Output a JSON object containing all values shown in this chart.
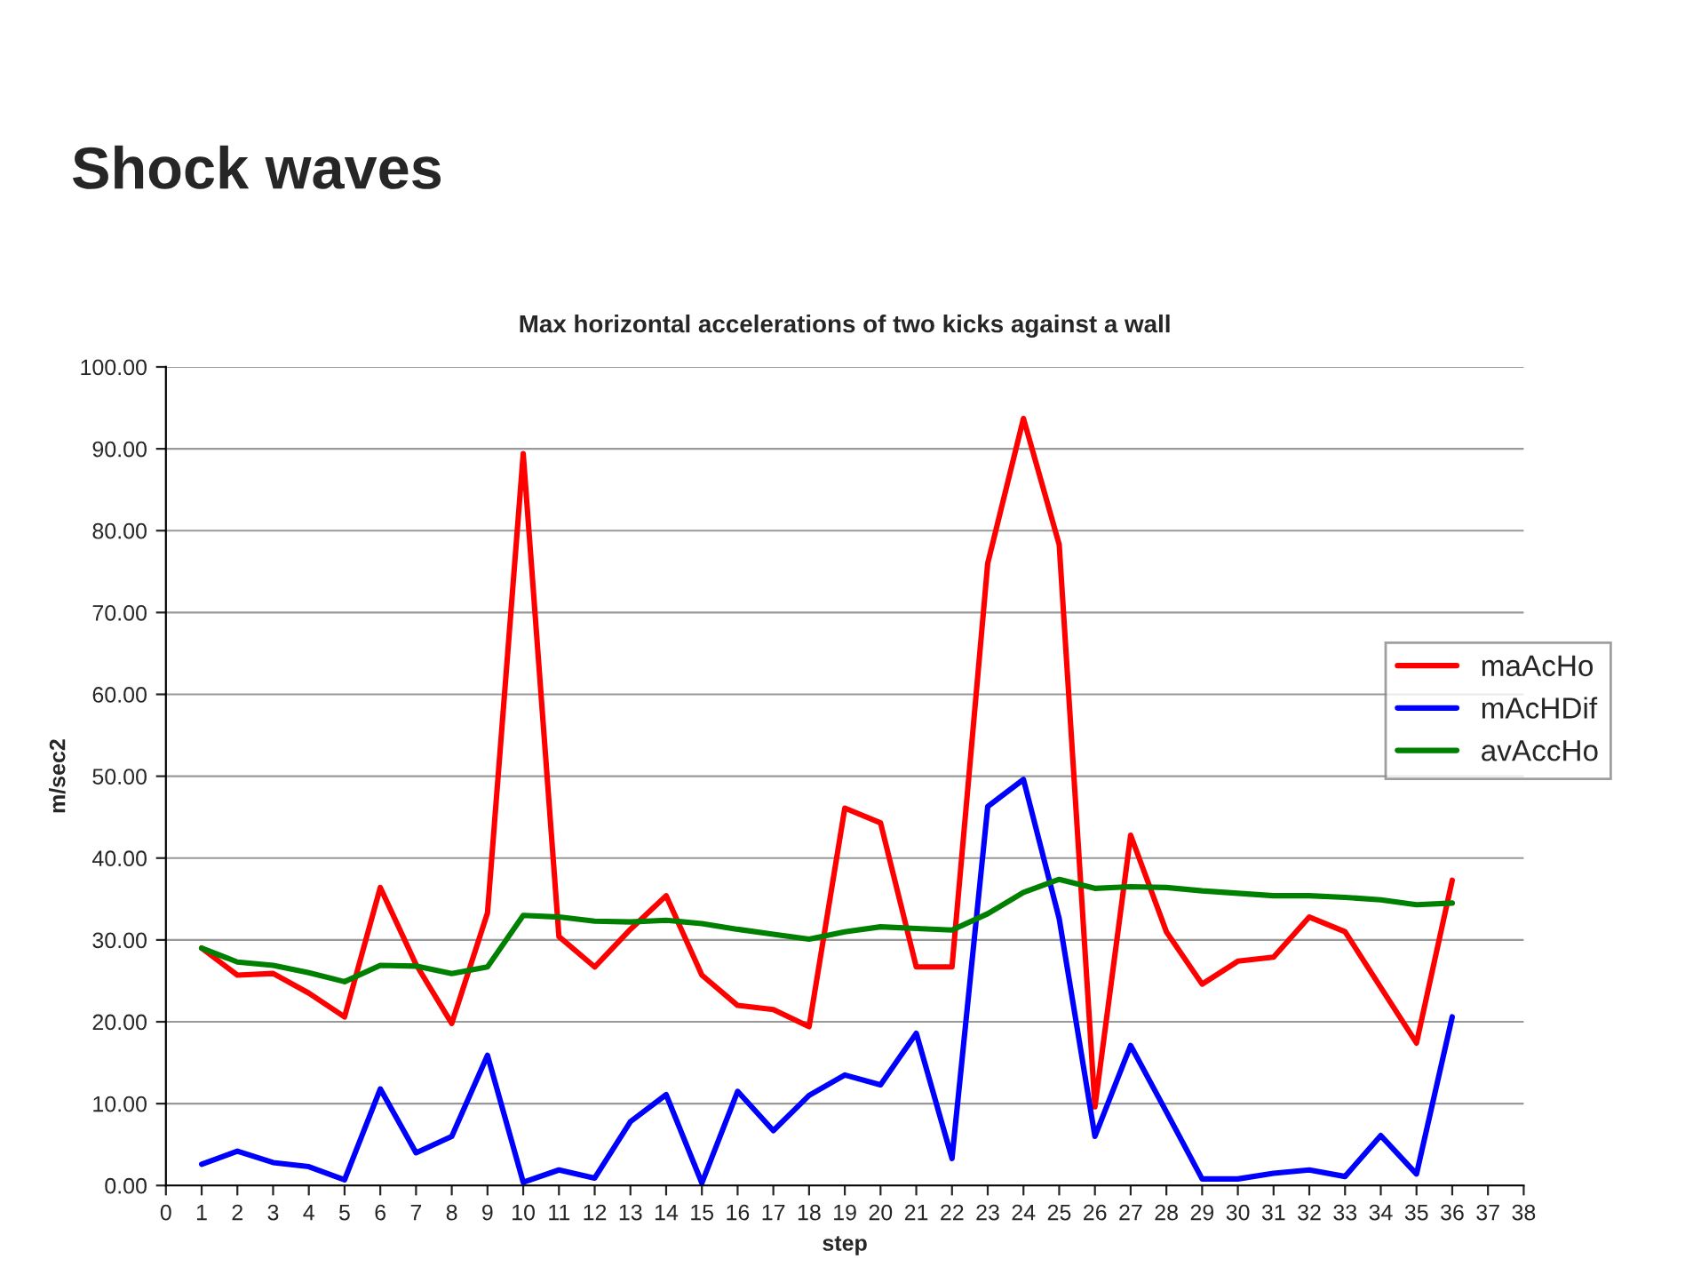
{
  "chart_data": {
    "type": "line",
    "title": "Shock waves",
    "subtitle": "Max horizontal accelerations of two kicks against a wall",
    "xlabel": "step",
    "ylabel": "m/sec2",
    "x": [
      1,
      2,
      3,
      4,
      5,
      6,
      7,
      8,
      9,
      10,
      11,
      12,
      13,
      14,
      15,
      16,
      17,
      18,
      19,
      20,
      21,
      22,
      23,
      24,
      25,
      26,
      27,
      28,
      29,
      30,
      31,
      32,
      33,
      34,
      35,
      36
    ],
    "series": [
      {
        "name": "maAcHo",
        "color": "#ff0000",
        "values": [
          29,
          25.7,
          25.9,
          23.5,
          20.6,
          36.4,
          27,
          19.8,
          33.3,
          89.4,
          30.4,
          26.7,
          31.3,
          35.4,
          25.7,
          22,
          21.5,
          19.4,
          46.1,
          44.3,
          26.7,
          26.7,
          76,
          93.7,
          78.3,
          9.6,
          42.8,
          31,
          24.6,
          27.4,
          27.9,
          32.8,
          31,
          24.2,
          17.4,
          37.3
        ]
      },
      {
        "name": "mAcHDif",
        "color": "#0000ff",
        "values": [
          2.6,
          4.2,
          2.8,
          2.3,
          0.7,
          11.8,
          4,
          6,
          15.9,
          0.4,
          1.9,
          0.9,
          7.8,
          11.1,
          0.3,
          11.5,
          6.7,
          11,
          13.5,
          12.3,
          18.6,
          3.3,
          46.3,
          49.6,
          32.6,
          6,
          17.1,
          9,
          0.8,
          0.8,
          1.5,
          1.9,
          1.1,
          6.1,
          1.4,
          20.6
        ]
      },
      {
        "name": "avAccHo",
        "color": "#008000",
        "values": [
          29,
          27.3,
          26.9,
          26,
          24.9,
          26.9,
          26.8,
          25.9,
          26.7,
          33,
          32.8,
          32.3,
          32.2,
          32.4,
          32,
          31.3,
          30.7,
          30.1,
          31,
          31.6,
          31.4,
          31.2,
          33.2,
          35.8,
          37.4,
          36.3,
          36.5,
          36.4,
          36,
          35.7,
          35.4,
          35.4,
          35.2,
          34.9,
          34.3,
          34.5
        ]
      }
    ],
    "xlim": [
      0,
      38
    ],
    "xticks": [
      0,
      1,
      2,
      3,
      4,
      5,
      6,
      7,
      8,
      9,
      10,
      11,
      12,
      13,
      14,
      15,
      16,
      17,
      18,
      19,
      20,
      21,
      22,
      23,
      24,
      25,
      26,
      27,
      28,
      29,
      30,
      31,
      32,
      33,
      34,
      35,
      36,
      37,
      38
    ],
    "ylim": [
      0,
      100
    ],
    "yticks": [
      {
        "value": 0,
        "label": "0.00"
      },
      {
        "value": 10,
        "label": "10.00"
      },
      {
        "value": 20,
        "label": "20.00"
      },
      {
        "value": 30,
        "label": "30.00"
      },
      {
        "value": 40,
        "label": "40.00"
      },
      {
        "value": 50,
        "label": "50.00"
      },
      {
        "value": 60,
        "label": "60.00"
      },
      {
        "value": 70,
        "label": "70.00"
      },
      {
        "value": 80,
        "label": "80.00"
      },
      {
        "value": 90,
        "label": "90.00"
      },
      {
        "value": 100,
        "label": "100.00"
      }
    ],
    "grid": "y",
    "legend": "right",
    "marker": "none",
    "line_style": "solid"
  }
}
